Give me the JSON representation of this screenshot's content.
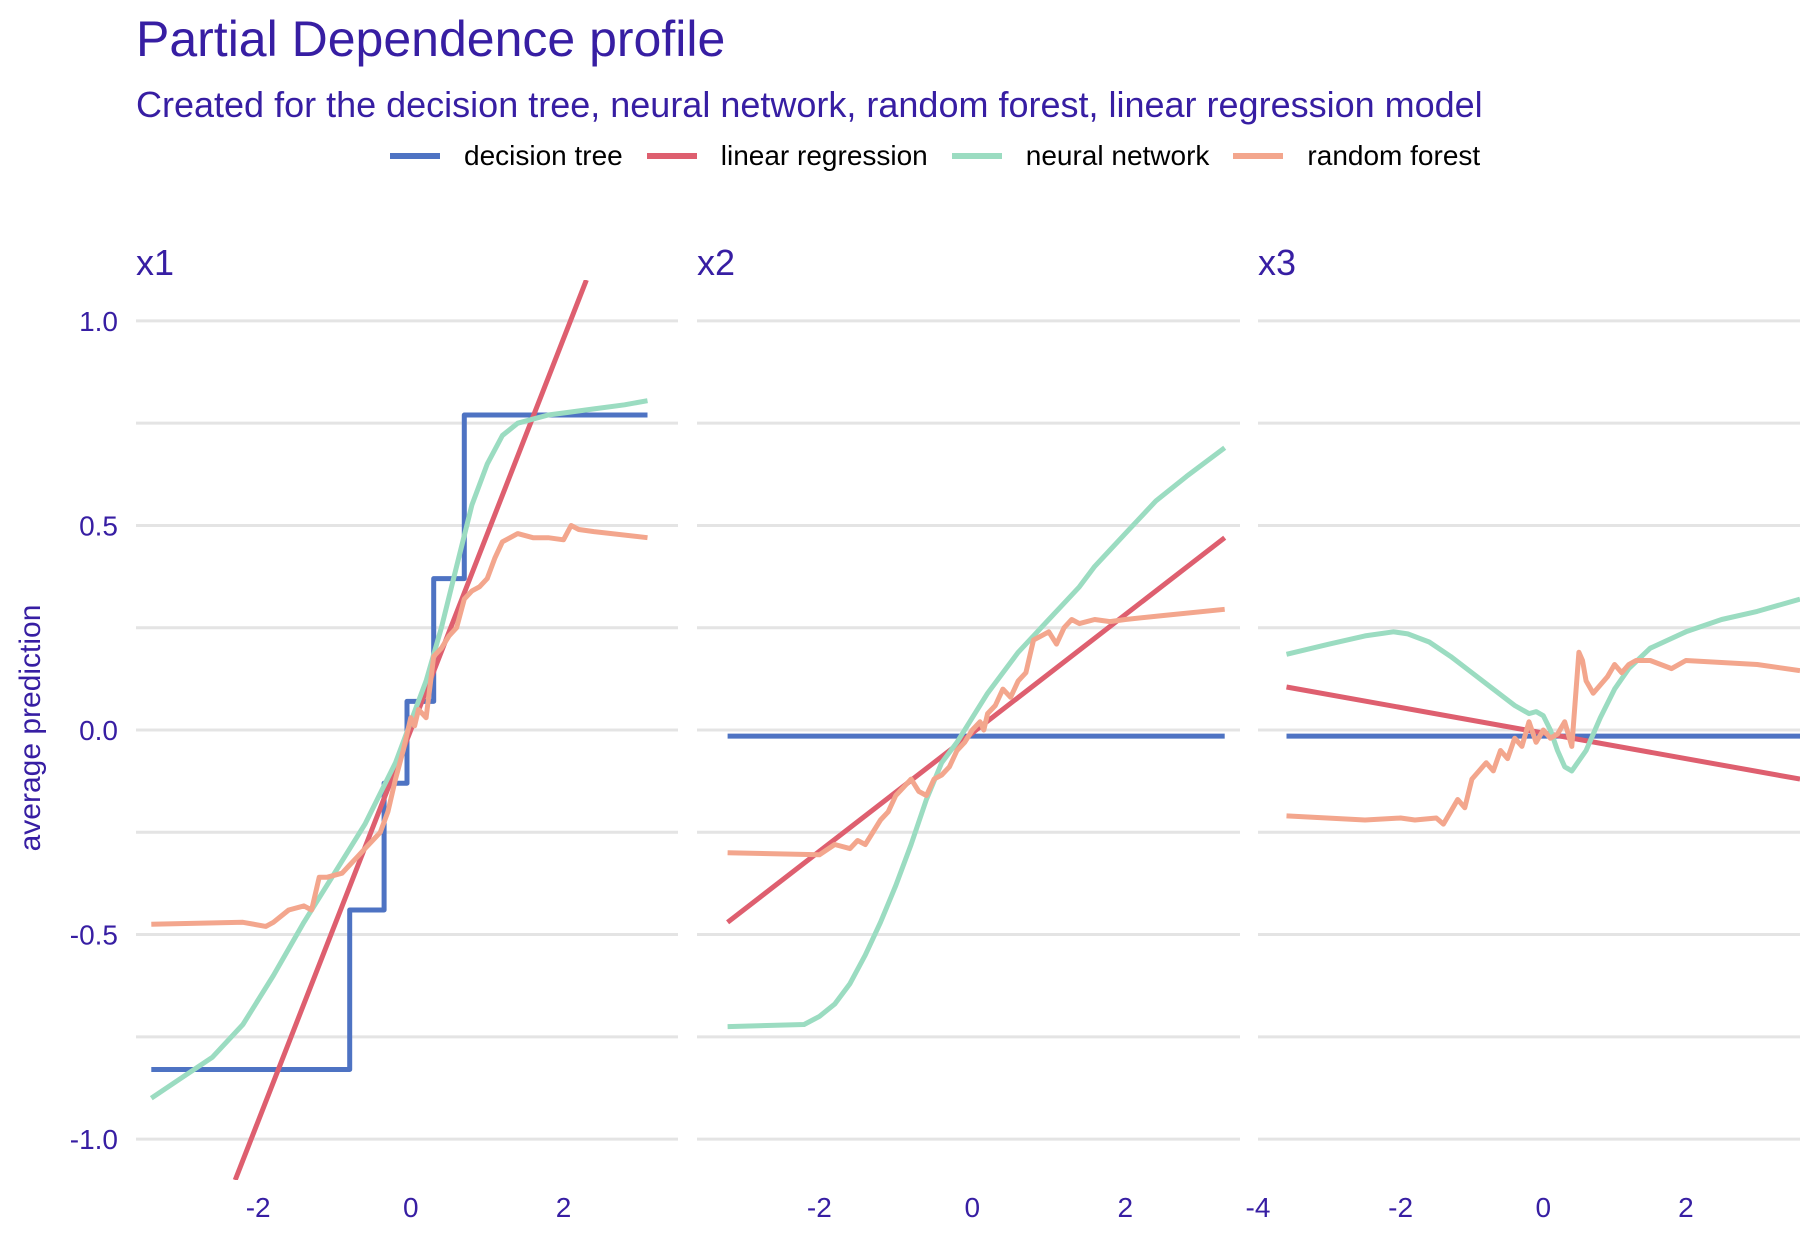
{
  "title": "Partial Dependence profile",
  "subtitle": "Created for the decision tree, neural network, random forest, linear regression model",
  "colors": {
    "text": "#371ea3",
    "grid": "#e4e4e4",
    "decision tree": "#4e73c3",
    "linear regression": "#de5f6f",
    "neural network": "#9bdcc1",
    "random forest": "#f3a68d"
  },
  "chart_data": {
    "type": "line",
    "ylabel": "average prediction",
    "ylim": [
      -1.1,
      1.1
    ],
    "y_ticks": [
      -1.0,
      -0.5,
      0.0,
      0.5,
      1.0
    ],
    "y_tick_labels": [
      "-1.0",
      "-0.5",
      "0.0",
      "0.5",
      "1.0"
    ],
    "legend_position": "top",
    "legend": [
      "decision tree",
      "linear regression",
      "neural network",
      "random forest"
    ],
    "panels": [
      {
        "name": "x1",
        "xlim": [
          -3.6,
          3.5
        ],
        "x_ticks": [
          -2,
          0,
          2
        ],
        "x_tick_labels": [
          "-2",
          "0",
          "2"
        ],
        "series": [
          {
            "name": "decision tree",
            "step": true,
            "x": [
              -3.4,
              -0.8,
              -0.8,
              -0.35,
              -0.35,
              -0.05,
              -0.05,
              0.3,
              0.3,
              0.7,
              0.7,
              3.1
            ],
            "y": [
              -0.83,
              -0.83,
              -0.44,
              -0.44,
              -0.13,
              -0.13,
              0.07,
              0.07,
              0.37,
              0.37,
              0.77,
              0.77
            ]
          },
          {
            "name": "linear regression",
            "x": [
              -2.3,
              2.3
            ],
            "y": [
              -1.1,
              1.1
            ]
          },
          {
            "name": "neural network",
            "x": [
              -3.4,
              -3.0,
              -2.6,
              -2.2,
              -1.8,
              -1.4,
              -1.0,
              -0.6,
              -0.2,
              0.0,
              0.2,
              0.4,
              0.6,
              0.8,
              1.0,
              1.2,
              1.4,
              1.6,
              1.8,
              2.0,
              2.4,
              2.8,
              3.1
            ],
            "y": [
              -0.9,
              -0.85,
              -0.8,
              -0.72,
              -0.6,
              -0.47,
              -0.35,
              -0.23,
              -0.08,
              0.02,
              0.12,
              0.25,
              0.4,
              0.55,
              0.65,
              0.72,
              0.75,
              0.76,
              0.77,
              0.775,
              0.785,
              0.795,
              0.805
            ]
          },
          {
            "name": "random forest",
            "x": [
              -3.4,
              -2.2,
              -1.9,
              -1.8,
              -1.6,
              -1.4,
              -1.3,
              -1.2,
              -1.1,
              -0.9,
              -0.8,
              -0.7,
              -0.6,
              -0.5,
              -0.4,
              -0.3,
              -0.2,
              -0.1,
              0.0,
              0.05,
              0.1,
              0.2,
              0.3,
              0.4,
              0.5,
              0.6,
              0.7,
              0.8,
              0.9,
              1.0,
              1.1,
              1.2,
              1.3,
              1.4,
              1.6,
              1.8,
              2.0,
              2.1,
              2.2,
              2.4,
              3.1
            ],
            "y": [
              -0.475,
              -0.47,
              -0.48,
              -0.47,
              -0.44,
              -0.43,
              -0.44,
              -0.36,
              -0.36,
              -0.35,
              -0.33,
              -0.31,
              -0.29,
              -0.27,
              -0.25,
              -0.2,
              -0.12,
              -0.05,
              0.03,
              0.01,
              0.05,
              0.03,
              0.18,
              0.2,
              0.23,
              0.25,
              0.32,
              0.34,
              0.35,
              0.37,
              0.42,
              0.46,
              0.47,
              0.48,
              0.47,
              0.47,
              0.465,
              0.5,
              0.49,
              0.485,
              0.47
            ]
          }
        ]
      },
      {
        "name": "x2",
        "xlim": [
          -3.6,
          3.5
        ],
        "x_ticks": [
          -2,
          0,
          2
        ],
        "x_tick_labels": [
          "-2",
          "0",
          "2"
        ],
        "series": [
          {
            "name": "decision tree",
            "x": [
              -3.2,
              3.3
            ],
            "y": [
              -0.015,
              -0.015
            ]
          },
          {
            "name": "linear regression",
            "x": [
              -3.2,
              3.3
            ],
            "y": [
              -0.47,
              0.47
            ]
          },
          {
            "name": "neural network",
            "x": [
              -3.2,
              -2.2,
              -2.0,
              -1.8,
              -1.6,
              -1.4,
              -1.2,
              -1.0,
              -0.8,
              -0.6,
              -0.4,
              -0.2,
              0.0,
              0.2,
              0.4,
              0.6,
              0.8,
              1.0,
              1.2,
              1.4,
              1.6,
              1.8,
              2.0,
              2.4,
              2.8,
              3.3
            ],
            "y": [
              -0.725,
              -0.72,
              -0.7,
              -0.67,
              -0.62,
              -0.55,
              -0.47,
              -0.38,
              -0.28,
              -0.17,
              -0.08,
              -0.03,
              0.03,
              0.09,
              0.14,
              0.19,
              0.23,
              0.27,
              0.31,
              0.35,
              0.4,
              0.44,
              0.48,
              0.56,
              0.62,
              0.69
            ]
          },
          {
            "name": "random forest",
            "x": [
              -3.2,
              -2.0,
              -1.8,
              -1.6,
              -1.5,
              -1.4,
              -1.2,
              -1.1,
              -1.0,
              -0.9,
              -0.8,
              -0.7,
              -0.6,
              -0.5,
              -0.4,
              -0.3,
              -0.2,
              -0.1,
              0.0,
              0.1,
              0.15,
              0.2,
              0.3,
              0.4,
              0.5,
              0.6,
              0.7,
              0.8,
              0.9,
              1.0,
              1.1,
              1.2,
              1.3,
              1.4,
              1.6,
              1.8,
              2.0,
              2.5,
              3.3
            ],
            "y": [
              -0.3,
              -0.305,
              -0.28,
              -0.29,
              -0.27,
              -0.28,
              -0.22,
              -0.2,
              -0.16,
              -0.14,
              -0.12,
              -0.15,
              -0.16,
              -0.12,
              -0.11,
              -0.09,
              -0.05,
              -0.03,
              0.0,
              0.02,
              0.0,
              0.04,
              0.06,
              0.1,
              0.08,
              0.12,
              0.14,
              0.22,
              0.23,
              0.24,
              0.21,
              0.25,
              0.27,
              0.26,
              0.27,
              0.265,
              0.27,
              0.28,
              0.295
            ]
          }
        ]
      },
      {
        "name": "x3",
        "xlim": [
          -4.0,
          3.6
        ],
        "x_ticks": [
          -4,
          -2,
          0,
          2
        ],
        "x_tick_labels": [
          "-4",
          "-2",
          "0",
          "2"
        ],
        "series": [
          {
            "name": "decision tree",
            "x": [
              -3.6,
              3.6
            ],
            "y": [
              -0.015,
              -0.015
            ]
          },
          {
            "name": "linear regression",
            "x": [
              -3.6,
              3.6
            ],
            "y": [
              0.105,
              -0.12
            ]
          },
          {
            "name": "neural network",
            "x": [
              -3.6,
              -3.0,
              -2.5,
              -2.1,
              -1.9,
              -1.6,
              -1.3,
              -1.0,
              -0.7,
              -0.4,
              -0.2,
              -0.1,
              0.0,
              0.1,
              0.2,
              0.3,
              0.4,
              0.6,
              0.8,
              1.0,
              1.2,
              1.5,
              2.0,
              2.5,
              3.0,
              3.6
            ],
            "y": [
              0.185,
              0.21,
              0.23,
              0.24,
              0.235,
              0.215,
              0.18,
              0.14,
              0.1,
              0.06,
              0.04,
              0.045,
              0.035,
              0.0,
              -0.05,
              -0.09,
              -0.1,
              -0.05,
              0.03,
              0.1,
              0.15,
              0.2,
              0.24,
              0.27,
              0.29,
              0.32
            ]
          },
          {
            "name": "random forest",
            "x": [
              -3.6,
              -2.5,
              -2.0,
              -1.8,
              -1.5,
              -1.4,
              -1.3,
              -1.2,
              -1.1,
              -1.0,
              -0.9,
              -0.8,
              -0.7,
              -0.6,
              -0.5,
              -0.4,
              -0.3,
              -0.2,
              -0.1,
              0.0,
              0.1,
              0.2,
              0.3,
              0.4,
              0.5,
              0.55,
              0.6,
              0.7,
              0.8,
              0.9,
              1.0,
              1.1,
              1.2,
              1.3,
              1.5,
              1.8,
              2.0,
              2.5,
              3.0,
              3.6
            ],
            "y": [
              -0.21,
              -0.22,
              -0.215,
              -0.22,
              -0.215,
              -0.23,
              -0.2,
              -0.17,
              -0.19,
              -0.12,
              -0.1,
              -0.08,
              -0.1,
              -0.05,
              -0.07,
              -0.02,
              -0.04,
              0.02,
              -0.03,
              0.0,
              -0.02,
              -0.01,
              0.02,
              -0.04,
              0.19,
              0.17,
              0.12,
              0.09,
              0.11,
              0.13,
              0.16,
              0.14,
              0.16,
              0.17,
              0.17,
              0.15,
              0.17,
              0.165,
              0.16,
              0.145
            ]
          }
        ]
      }
    ]
  }
}
